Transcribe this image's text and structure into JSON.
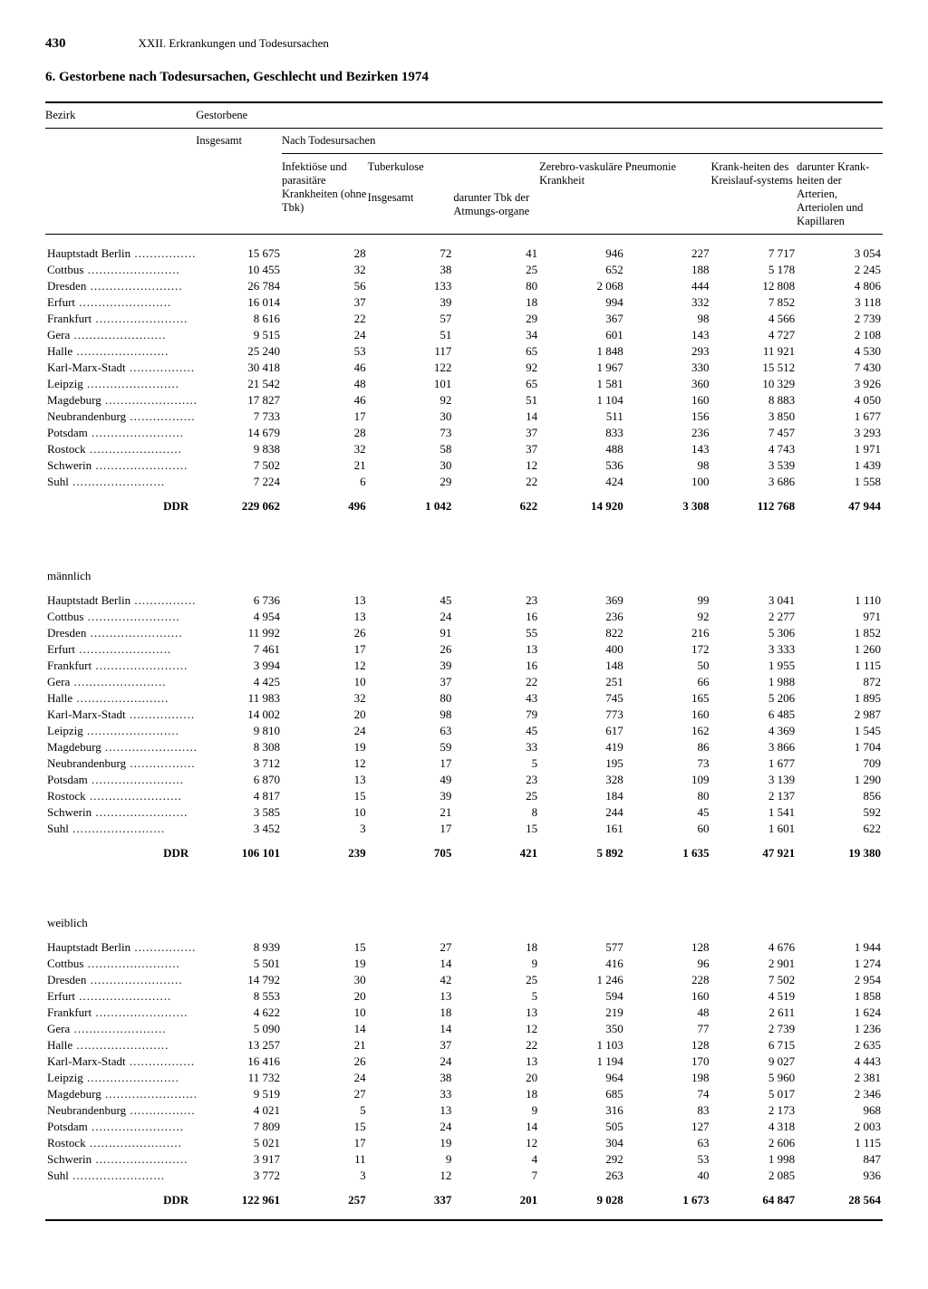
{
  "page_number": "430",
  "chapter": "XXII. Erkrankungen und Todesursachen",
  "title": "6. Gestorbene nach Todesursachen, Geschlecht und Bezirken 1974",
  "header": {
    "col_bezirk": "Bezirk",
    "col_gestorbene": "Gestorbene",
    "col_insgesamt": "Insgesamt",
    "col_nach": "Nach Todesursachen",
    "col_infekt": "Infektiöse und parasitäre Krankheiten (ohne Tbk)",
    "col_tbk": "Tuberkulose",
    "col_tbk_insg": "Insgesamt",
    "col_tbk_atm": "darunter Tbk der Atmungs-organe",
    "col_zerebro": "Zerebro-vaskuläre Krankheit",
    "col_pneum": "Pneumonie",
    "col_kreis": "Krank-heiten des Kreislauf-systems",
    "col_arter": "darunter Krank-heiten der Arterien, Arteriolen und Kapillaren"
  },
  "sections": [
    {
      "label": "",
      "rows": [
        {
          "name": "Hauptstadt Berlin",
          "v": [
            "15 675",
            "28",
            "72",
            "41",
            "946",
            "227",
            "7 717",
            "3 054"
          ]
        },
        {
          "name": "Cottbus",
          "v": [
            "10 455",
            "32",
            "38",
            "25",
            "652",
            "188",
            "5 178",
            "2 245"
          ]
        },
        {
          "name": "Dresden",
          "v": [
            "26 784",
            "56",
            "133",
            "80",
            "2 068",
            "444",
            "12 808",
            "4 806"
          ]
        },
        {
          "name": "Erfurt",
          "v": [
            "16 014",
            "37",
            "39",
            "18",
            "994",
            "332",
            "7 852",
            "3 118"
          ]
        },
        {
          "name": "Frankfurt",
          "v": [
            "8 616",
            "22",
            "57",
            "29",
            "367",
            "98",
            "4 566",
            "2 739"
          ]
        },
        {
          "name": "Gera",
          "v": [
            "9 515",
            "24",
            "51",
            "34",
            "601",
            "143",
            "4 727",
            "2 108"
          ]
        },
        {
          "name": "Halle",
          "v": [
            "25 240",
            "53",
            "117",
            "65",
            "1 848",
            "293",
            "11 921",
            "4 530"
          ]
        },
        {
          "name": "Karl-Marx-Stadt",
          "v": [
            "30 418",
            "46",
            "122",
            "92",
            "1 967",
            "330",
            "15 512",
            "7 430"
          ]
        },
        {
          "name": "Leipzig",
          "v": [
            "21 542",
            "48",
            "101",
            "65",
            "1 581",
            "360",
            "10 329",
            "3 926"
          ]
        },
        {
          "name": "Magdeburg",
          "v": [
            "17 827",
            "46",
            "92",
            "51",
            "1 104",
            "160",
            "8 883",
            "4 050"
          ]
        },
        {
          "name": "Neubrandenburg",
          "v": [
            "7 733",
            "17",
            "30",
            "14",
            "511",
            "156",
            "3 850",
            "1 677"
          ]
        },
        {
          "name": "Potsdam",
          "v": [
            "14 679",
            "28",
            "73",
            "37",
            "833",
            "236",
            "7 457",
            "3 293"
          ]
        },
        {
          "name": "Rostock",
          "v": [
            "9 838",
            "32",
            "58",
            "37",
            "488",
            "143",
            "4 743",
            "1 971"
          ]
        },
        {
          "name": "Schwerin",
          "v": [
            "7 502",
            "21",
            "30",
            "12",
            "536",
            "98",
            "3 539",
            "1 439"
          ]
        },
        {
          "name": "Suhl",
          "v": [
            "7 224",
            "6",
            "29",
            "22",
            "424",
            "100",
            "3 686",
            "1 558"
          ]
        }
      ],
      "total": {
        "name": "DDR",
        "v": [
          "229 062",
          "496",
          "1 042",
          "622",
          "14 920",
          "3 308",
          "112 768",
          "47 944"
        ]
      }
    },
    {
      "label": "männlich",
      "rows": [
        {
          "name": "Hauptstadt Berlin",
          "v": [
            "6 736",
            "13",
            "45",
            "23",
            "369",
            "99",
            "3 041",
            "1 110"
          ]
        },
        {
          "name": "Cottbus",
          "v": [
            "4 954",
            "13",
            "24",
            "16",
            "236",
            "92",
            "2 277",
            "971"
          ]
        },
        {
          "name": "Dresden",
          "v": [
            "11 992",
            "26",
            "91",
            "55",
            "822",
            "216",
            "5 306",
            "1 852"
          ]
        },
        {
          "name": "Erfurt",
          "v": [
            "7 461",
            "17",
            "26",
            "13",
            "400",
            "172",
            "3 333",
            "1 260"
          ]
        },
        {
          "name": "Frankfurt",
          "v": [
            "3 994",
            "12",
            "39",
            "16",
            "148",
            "50",
            "1 955",
            "1 115"
          ]
        },
        {
          "name": "Gera",
          "v": [
            "4 425",
            "10",
            "37",
            "22",
            "251",
            "66",
            "1 988",
            "872"
          ]
        },
        {
          "name": "Halle",
          "v": [
            "11 983",
            "32",
            "80",
            "43",
            "745",
            "165",
            "5 206",
            "1 895"
          ]
        },
        {
          "name": "Karl-Marx-Stadt",
          "v": [
            "14 002",
            "20",
            "98",
            "79",
            "773",
            "160",
            "6 485",
            "2 987"
          ]
        },
        {
          "name": "Leipzig",
          "v": [
            "9 810",
            "24",
            "63",
            "45",
            "617",
            "162",
            "4 369",
            "1 545"
          ]
        },
        {
          "name": "Magdeburg",
          "v": [
            "8 308",
            "19",
            "59",
            "33",
            "419",
            "86",
            "3 866",
            "1 704"
          ]
        },
        {
          "name": "Neubrandenburg",
          "v": [
            "3 712",
            "12",
            "17",
            "5",
            "195",
            "73",
            "1 677",
            "709"
          ]
        },
        {
          "name": "Potsdam",
          "v": [
            "6 870",
            "13",
            "49",
            "23",
            "328",
            "109",
            "3 139",
            "1 290"
          ]
        },
        {
          "name": "Rostock",
          "v": [
            "4 817",
            "15",
            "39",
            "25",
            "184",
            "80",
            "2 137",
            "856"
          ]
        },
        {
          "name": "Schwerin",
          "v": [
            "3 585",
            "10",
            "21",
            "8",
            "244",
            "45",
            "1 541",
            "592"
          ]
        },
        {
          "name": "Suhl",
          "v": [
            "3 452",
            "3",
            "17",
            "15",
            "161",
            "60",
            "1 601",
            "622"
          ]
        }
      ],
      "total": {
        "name": "DDR",
        "v": [
          "106 101",
          "239",
          "705",
          "421",
          "5 892",
          "1 635",
          "47 921",
          "19 380"
        ]
      }
    },
    {
      "label": "weiblich",
      "rows": [
        {
          "name": "Hauptstadt Berlin",
          "v": [
            "8 939",
            "15",
            "27",
            "18",
            "577",
            "128",
            "4 676",
            "1 944"
          ]
        },
        {
          "name": "Cottbus",
          "v": [
            "5 501",
            "19",
            "14",
            "9",
            "416",
            "96",
            "2 901",
            "1 274"
          ]
        },
        {
          "name": "Dresden",
          "v": [
            "14 792",
            "30",
            "42",
            "25",
            "1 246",
            "228",
            "7 502",
            "2 954"
          ]
        },
        {
          "name": "Erfurt",
          "v": [
            "8 553",
            "20",
            "13",
            "5",
            "594",
            "160",
            "4 519",
            "1 858"
          ]
        },
        {
          "name": "Frankfurt",
          "v": [
            "4 622",
            "10",
            "18",
            "13",
            "219",
            "48",
            "2 611",
            "1 624"
          ]
        },
        {
          "name": "Gera",
          "v": [
            "5 090",
            "14",
            "14",
            "12",
            "350",
            "77",
            "2 739",
            "1 236"
          ]
        },
        {
          "name": "Halle",
          "v": [
            "13 257",
            "21",
            "37",
            "22",
            "1 103",
            "128",
            "6 715",
            "2 635"
          ]
        },
        {
          "name": "Karl-Marx-Stadt",
          "v": [
            "16 416",
            "26",
            "24",
            "13",
            "1 194",
            "170",
            "9 027",
            "4 443"
          ]
        },
        {
          "name": "Leipzig",
          "v": [
            "11 732",
            "24",
            "38",
            "20",
            "964",
            "198",
            "5 960",
            "2 381"
          ]
        },
        {
          "name": "Magdeburg",
          "v": [
            "9 519",
            "27",
            "33",
            "18",
            "685",
            "74",
            "5 017",
            "2 346"
          ]
        },
        {
          "name": "Neubrandenburg",
          "v": [
            "4 021",
            "5",
            "13",
            "9",
            "316",
            "83",
            "2 173",
            "968"
          ]
        },
        {
          "name": "Potsdam",
          "v": [
            "7 809",
            "15",
            "24",
            "14",
            "505",
            "127",
            "4 318",
            "2 003"
          ]
        },
        {
          "name": "Rostock",
          "v": [
            "5 021",
            "17",
            "19",
            "12",
            "304",
            "63",
            "2 606",
            "1 115"
          ]
        },
        {
          "name": "Schwerin",
          "v": [
            "3 917",
            "11",
            "9",
            "4",
            "292",
            "53",
            "1 998",
            "847"
          ]
        },
        {
          "name": "Suhl",
          "v": [
            "3 772",
            "3",
            "12",
            "7",
            "263",
            "40",
            "2 085",
            "936"
          ]
        }
      ],
      "total": {
        "name": "DDR",
        "v": [
          "122 961",
          "257",
          "337",
          "201",
          "9 028",
          "1 673",
          "64 847",
          "28 564"
        ]
      }
    }
  ]
}
